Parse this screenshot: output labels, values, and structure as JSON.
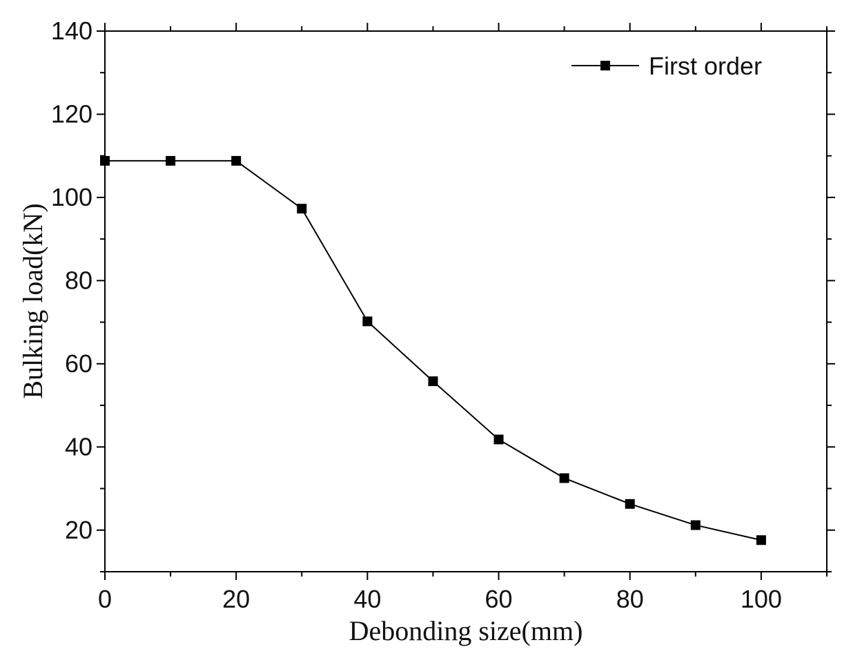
{
  "chart_data": {
    "type": "line",
    "title": "",
    "xlabel": "Debonding size(mm)",
    "ylabel": "Bulking load(kN)",
    "xlim": [
      0,
      110
    ],
    "ylim": [
      10,
      140
    ],
    "xticks": [
      0,
      20,
      40,
      60,
      80,
      100
    ],
    "yticks": [
      20,
      40,
      60,
      80,
      100,
      120,
      140
    ],
    "legend": {
      "position": "top-right"
    },
    "grid": false,
    "series": [
      {
        "name": "First order",
        "color": "#000000",
        "marker": "square",
        "x": [
          0,
          10,
          20,
          30,
          40,
          50,
          60,
          70,
          80,
          90,
          100
        ],
        "y": [
          108.8,
          108.8,
          108.8,
          97.3,
          70.2,
          55.8,
          41.8,
          32.5,
          26.3,
          21.2,
          17.6
        ]
      }
    ]
  }
}
